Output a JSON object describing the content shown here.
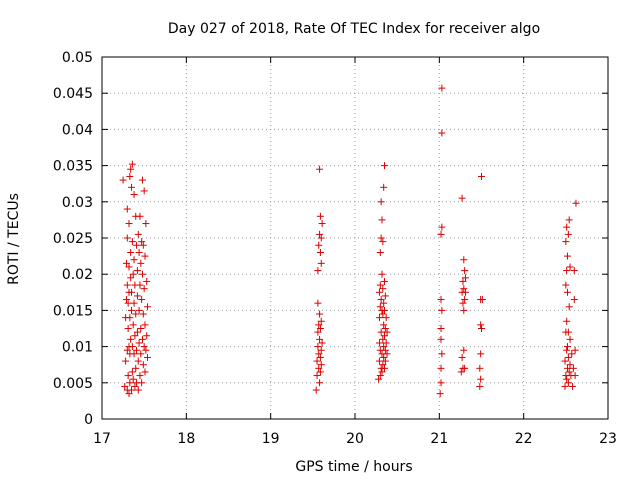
{
  "chart_data": {
    "type": "scatter",
    "title": "Day 027 of 2018, Rate Of TEC Index for receiver algo",
    "xlabel": "GPS time / hours",
    "ylabel": "ROTI / TECUs",
    "xlim": [
      17,
      23
    ],
    "ylim": [
      0,
      0.05
    ],
    "x_ticks": [
      17,
      18,
      19,
      20,
      21,
      22,
      23
    ],
    "x_tick_labels": [
      "17",
      "18",
      "19",
      "20",
      "21",
      "22",
      "23"
    ],
    "y_ticks": [
      0,
      0.005,
      0.01,
      0.015,
      0.02,
      0.025,
      0.03,
      0.035,
      0.04,
      0.045,
      0.05
    ],
    "y_tick_labels": [
      "0",
      "0.005",
      "0.01",
      "0.015",
      "0.02",
      "0.025",
      "0.03",
      "0.035",
      "0.04",
      "0.045",
      "0.05"
    ],
    "grid": true,
    "marker": "+",
    "color": "#dd0000",
    "series": [
      {
        "name": "ROTI",
        "points": [
          [
            17.25,
            0.033
          ],
          [
            17.27,
            0.0045
          ],
          [
            17.28,
            0.008
          ],
          [
            17.28,
            0.014
          ],
          [
            17.29,
            0.0165
          ],
          [
            17.29,
            0.0215
          ],
          [
            17.3,
            0.004
          ],
          [
            17.3,
            0.0095
          ],
          [
            17.3,
            0.0185
          ],
          [
            17.3,
            0.025
          ],
          [
            17.3,
            0.029
          ],
          [
            17.31,
            0.006
          ],
          [
            17.31,
            0.0125
          ],
          [
            17.31,
            0.016
          ],
          [
            17.32,
            0.0035
          ],
          [
            17.32,
            0.01
          ],
          [
            17.32,
            0.0175
          ],
          [
            17.32,
            0.021
          ],
          [
            17.32,
            0.027
          ],
          [
            17.33,
            0.0335
          ],
          [
            17.33,
            0.005
          ],
          [
            17.33,
            0.009
          ],
          [
            17.33,
            0.014
          ],
          [
            17.34,
            0.0345
          ],
          [
            17.34,
            0.0195
          ],
          [
            17.34,
            0.023
          ],
          [
            17.34,
            0.011
          ],
          [
            17.35,
            0.004
          ],
          [
            17.35,
            0.015
          ],
          [
            17.35,
            0.0175
          ],
          [
            17.35,
            0.032
          ],
          [
            17.36,
            0.0352
          ],
          [
            17.36,
            0.0065
          ],
          [
            17.36,
            0.01
          ],
          [
            17.36,
            0.0245
          ],
          [
            17.37,
            0.02
          ],
          [
            17.37,
            0.013
          ],
          [
            17.37,
            0.0055
          ],
          [
            17.38,
            0.031
          ],
          [
            17.38,
            0.016
          ],
          [
            17.38,
            0.009
          ],
          [
            17.38,
            0.022
          ],
          [
            17.39,
            0.0045
          ],
          [
            17.39,
            0.0115
          ],
          [
            17.39,
            0.0185
          ],
          [
            17.4,
            0.028
          ],
          [
            17.4,
            0.007
          ],
          [
            17.4,
            0.0145
          ],
          [
            17.41,
            0.024
          ],
          [
            17.41,
            0.0095
          ],
          [
            17.41,
            0.005
          ],
          [
            17.42,
            0.0205
          ],
          [
            17.42,
            0.017
          ],
          [
            17.42,
            0.012
          ],
          [
            17.43,
            0.0255
          ],
          [
            17.43,
            0.008
          ],
          [
            17.43,
            0.004
          ],
          [
            17.44,
            0.023
          ],
          [
            17.44,
            0.015
          ],
          [
            17.44,
            0.0105
          ],
          [
            17.45,
            0.028
          ],
          [
            17.45,
            0.0185
          ],
          [
            17.45,
            0.006
          ],
          [
            17.46,
            0.0215
          ],
          [
            17.46,
            0.0125
          ],
          [
            17.46,
            0.009
          ],
          [
            17.47,
            0.0245
          ],
          [
            17.47,
            0.0165
          ],
          [
            17.47,
            0.005
          ],
          [
            17.48,
            0.033
          ],
          [
            17.48,
            0.02
          ],
          [
            17.48,
            0.011
          ],
          [
            17.49,
            0.024
          ],
          [
            17.49,
            0.0145
          ],
          [
            17.49,
            0.0075
          ],
          [
            17.5,
            0.0315
          ],
          [
            17.5,
            0.018
          ],
          [
            17.5,
            0.01
          ],
          [
            17.51,
            0.0225
          ],
          [
            17.51,
            0.013
          ],
          [
            17.51,
            0.0065
          ],
          [
            17.52,
            0.027
          ],
          [
            17.52,
            0.0095
          ],
          [
            17.53,
            0.019
          ],
          [
            17.53,
            0.0115
          ],
          [
            17.54,
            0.0085
          ],
          [
            17.54,
            0.0155
          ],
          [
            19.54,
            0.004
          ],
          [
            19.55,
            0.006
          ],
          [
            19.55,
            0.008
          ],
          [
            19.56,
            0.01
          ],
          [
            19.56,
            0.012
          ],
          [
            19.56,
            0.016
          ],
          [
            19.56,
            0.0205
          ],
          [
            19.57,
            0.007
          ],
          [
            19.57,
            0.009
          ],
          [
            19.57,
            0.013
          ],
          [
            19.57,
            0.024
          ],
          [
            19.58,
            0.005
          ],
          [
            19.58,
            0.011
          ],
          [
            19.58,
            0.0145
          ],
          [
            19.58,
            0.0255
          ],
          [
            19.58,
            0.0345
          ],
          [
            19.59,
            0.0065
          ],
          [
            19.59,
            0.0085
          ],
          [
            19.59,
            0.0125
          ],
          [
            19.59,
            0.023
          ],
          [
            19.59,
            0.028
          ],
          [
            19.6,
            0.0075
          ],
          [
            19.6,
            0.0095
          ],
          [
            19.6,
            0.0135
          ],
          [
            19.6,
            0.0215
          ],
          [
            19.6,
            0.025
          ],
          [
            19.61,
            0.0105
          ],
          [
            19.61,
            0.027
          ],
          [
            20.28,
            0.0055
          ],
          [
            20.29,
            0.008
          ],
          [
            20.29,
            0.0105
          ],
          [
            20.29,
            0.014
          ],
          [
            20.29,
            0.0175
          ],
          [
            20.3,
            0.006
          ],
          [
            20.3,
            0.0095
          ],
          [
            20.3,
            0.0155
          ],
          [
            20.3,
            0.0185
          ],
          [
            20.3,
            0.023
          ],
          [
            20.31,
            0.007
          ],
          [
            20.31,
            0.012
          ],
          [
            20.31,
            0.0165
          ],
          [
            20.31,
            0.025
          ],
          [
            20.31,
            0.03
          ],
          [
            20.32,
            0.0065
          ],
          [
            20.32,
            0.009
          ],
          [
            20.32,
            0.015
          ],
          [
            20.32,
            0.02
          ],
          [
            20.32,
            0.0275
          ],
          [
            20.33,
            0.0075
          ],
          [
            20.33,
            0.011
          ],
          [
            20.33,
            0.0145
          ],
          [
            20.33,
            0.018
          ],
          [
            20.33,
            0.0245
          ],
          [
            20.34,
            0.0085
          ],
          [
            20.34,
            0.01
          ],
          [
            20.34,
            0.013
          ],
          [
            20.34,
            0.016
          ],
          [
            20.34,
            0.032
          ],
          [
            20.35,
            0.007
          ],
          [
            20.35,
            0.0115
          ],
          [
            20.35,
            0.015
          ],
          [
            20.35,
            0.019
          ],
          [
            20.35,
            0.035
          ],
          [
            20.36,
            0.008
          ],
          [
            20.36,
            0.0095
          ],
          [
            20.36,
            0.0125
          ],
          [
            20.36,
            0.017
          ],
          [
            20.37,
            0.0105
          ],
          [
            20.37,
            0.014
          ],
          [
            20.38,
            0.009
          ],
          [
            20.38,
            0.012
          ],
          [
            21.01,
            0.0035
          ],
          [
            21.02,
            0.005
          ],
          [
            21.02,
            0.007
          ],
          [
            21.02,
            0.011
          ],
          [
            21.02,
            0.0125
          ],
          [
            21.02,
            0.0165
          ],
          [
            21.02,
            0.0255
          ],
          [
            21.03,
            0.0265
          ],
          [
            21.03,
            0.0395
          ],
          [
            21.03,
            0.0457
          ],
          [
            21.03,
            0.015
          ],
          [
            21.03,
            0.009
          ],
          [
            21.26,
            0.0065
          ],
          [
            21.27,
            0.0085
          ],
          [
            21.27,
            0.0175
          ],
          [
            21.27,
            0.0305
          ],
          [
            21.28,
            0.007
          ],
          [
            21.28,
            0.016
          ],
          [
            21.28,
            0.019
          ],
          [
            21.29,
            0.0095
          ],
          [
            21.29,
            0.015
          ],
          [
            21.29,
            0.018
          ],
          [
            21.29,
            0.022
          ],
          [
            21.3,
            0.007
          ],
          [
            21.3,
            0.0165
          ],
          [
            21.3,
            0.0205
          ],
          [
            21.31,
            0.0175
          ],
          [
            21.31,
            0.0195
          ],
          [
            21.48,
            0.0045
          ],
          [
            21.48,
            0.007
          ],
          [
            21.49,
            0.0055
          ],
          [
            21.49,
            0.009
          ],
          [
            21.49,
            0.013
          ],
          [
            21.49,
            0.0165
          ],
          [
            21.5,
            0.0125
          ],
          [
            21.5,
            0.0335
          ],
          [
            21.51,
            0.0165
          ],
          [
            22.49,
            0.0045
          ],
          [
            22.49,
            0.008
          ],
          [
            22.5,
            0.006
          ],
          [
            22.5,
            0.012
          ],
          [
            22.5,
            0.0185
          ],
          [
            22.5,
            0.0245
          ],
          [
            22.51,
            0.0055
          ],
          [
            22.51,
            0.0095
          ],
          [
            22.51,
            0.0135
          ],
          [
            22.51,
            0.0205
          ],
          [
            22.51,
            0.0265
          ],
          [
            22.52,
            0.007
          ],
          [
            22.52,
            0.01
          ],
          [
            22.52,
            0.0175
          ],
          [
            22.52,
            0.0225
          ],
          [
            22.53,
            0.005
          ],
          [
            22.53,
            0.0085
          ],
          [
            22.53,
            0.012
          ],
          [
            22.53,
            0.0255
          ],
          [
            22.54,
            0.0065
          ],
          [
            22.54,
            0.0155
          ],
          [
            22.54,
            0.0275
          ],
          [
            22.55,
            0.0075
          ],
          [
            22.55,
            0.011
          ],
          [
            22.55,
            0.021
          ],
          [
            22.56,
            0.006
          ],
          [
            22.57,
            0.009
          ],
          [
            22.58,
            0.0045
          ],
          [
            22.59,
            0.007
          ],
          [
            22.6,
            0.0205
          ],
          [
            22.6,
            0.0165
          ],
          [
            22.61,
            0.0095
          ],
          [
            22.61,
            0.006
          ],
          [
            22.62,
            0.0298
          ]
        ]
      }
    ]
  }
}
